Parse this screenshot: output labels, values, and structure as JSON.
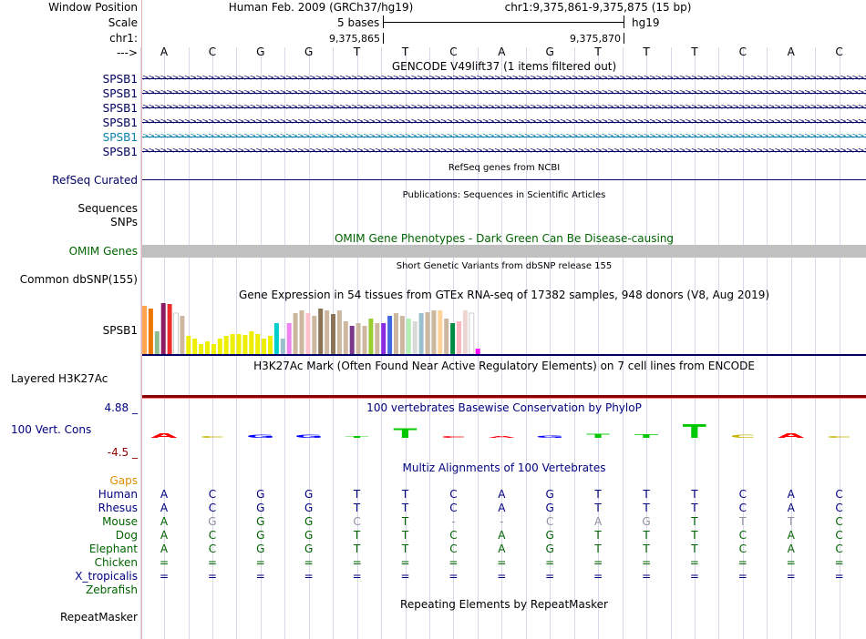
{
  "header": {
    "window_position_label": "Window Position",
    "scale_label": "Scale",
    "chr_label": "chr1:",
    "arrow_label": "--->",
    "assembly": "Human Feb. 2009 (GRCh37/hg19)",
    "position": "chr1:9,375,861-9,375,875 (15 bp)",
    "scale_text": "5 bases",
    "db": "hg19",
    "coord_left": "9,375,865",
    "coord_right": "9,375,870"
  },
  "bases": [
    "A",
    "C",
    "G",
    "G",
    "T",
    "T",
    "C",
    "A",
    "G",
    "T",
    "T",
    "T",
    "C",
    "A",
    "C"
  ],
  "gencode": {
    "title": "GENCODE V49lift37 (1 items filtered out)",
    "genes": [
      {
        "name": "SPSB1",
        "color": "#000064"
      },
      {
        "name": "SPSB1",
        "color": "#000064"
      },
      {
        "name": "SPSB1",
        "color": "#000064"
      },
      {
        "name": "SPSB1",
        "color": "#000064"
      },
      {
        "name": "SPSB1",
        "color": "#0a7faa"
      },
      {
        "name": "SPSB1",
        "color": "#000064"
      }
    ]
  },
  "refseq": {
    "title": "RefSeq genes from NCBI",
    "label": "RefSeq Curated"
  },
  "publications": {
    "title": "Publications: Sequences in Scientific Articles",
    "label1": "Sequences",
    "label2": "SNPs"
  },
  "omim": {
    "title": "OMIM Gene Phenotypes - Dark Green Can Be Disease-causing",
    "label": "OMIM Genes"
  },
  "dbsnp": {
    "title": "Short Genetic Variants from dbSNP release 155",
    "label": "Common dbSNP(155)"
  },
  "gtex": {
    "title": "Gene Expression in 54 tissues from GTEx RNA-seq of 17382 samples, 948 donors (V8, Aug 2019)",
    "label": "SPSB1",
    "tissue_levels": [
      0.95,
      0.9,
      0.45,
      1.0,
      0.98,
      0.8,
      0.75,
      0.35,
      0.3,
      0.2,
      0.25,
      0.2,
      0.3,
      0.35,
      0.4,
      0.4,
      0.38,
      0.45,
      0.4,
      0.3,
      0.35,
      0.6,
      0.3,
      0.6,
      0.8,
      0.85,
      0.8,
      0.75,
      0.9,
      0.85,
      0.78,
      0.85,
      0.65,
      0.55,
      0.6,
      0.55,
      0.7,
      0.6,
      0.6,
      0.75,
      0.8,
      0.75,
      0.7,
      0.65,
      0.8,
      0.82,
      0.85,
      0.85,
      0.7,
      0.6,
      0.65,
      0.85,
      0.8,
      0.1
    ],
    "tissue_colors": [
      "#ffa54f",
      "#ee7600",
      "#8fbc8f",
      "#8b1c62",
      "#ee2c2c",
      "#ffffff",
      "#cdb79e",
      "#eeee00",
      "#eeee00",
      "#eeee00",
      "#eeee00",
      "#eeee00",
      "#eeee00",
      "#eeee00",
      "#eeee00",
      "#eeee00",
      "#eeee00",
      "#eeee00",
      "#eeee00",
      "#eeee00",
      "#eeee00",
      "#00cdcd",
      "#9ac0cd",
      "#ee82ee",
      "#cdb79e",
      "#cdb79e",
      "#ffc0cb",
      "#cdb79e",
      "#8b7355",
      "#cdb79e",
      "#8b7355",
      "#cdb79e",
      "#cdb79e",
      "#7a378b",
      "#cdb79e",
      "#cdb79e",
      "#9acd32",
      "#cdb79e",
      "#8a2be2",
      "#4169e1",
      "#cdb79e",
      "#cdb79e",
      "#b4eeb4",
      "#d9d9d9",
      "#9ac0cd",
      "#cdb79e",
      "#cdb79e",
      "#ffd39b",
      "#cdb79e",
      "#008b45",
      "#ffb6c1",
      "#eed5d2",
      "#ffffff",
      "#ff00ff"
    ]
  },
  "h3k27ac": {
    "title": "H3K27Ac Mark (Often Found Near Active Regulatory Elements) on 7 cell lines from ENCODE",
    "label": "Layered H3K27Ac"
  },
  "cons": {
    "title": "100 vertebrates Basewise Conservation by PhyloP",
    "label": "100 Vert. Cons",
    "max_label": "4.88 _",
    "min_label": "-4.5 _",
    "scores": [
      1.2,
      0.3,
      0.7,
      0.8,
      0.2,
      2.5,
      0.1,
      0.5,
      0.6,
      1.1,
      0.9,
      3.5,
      0.8,
      1.3,
      0.2
    ],
    "colors": [
      "#ff0000",
      "#c8b400",
      "#0000ff",
      "#0000ff",
      "#00c800",
      "#00c800",
      "#ff0000",
      "#ff0000",
      "#0000ff",
      "#00c800",
      "#00c800",
      "#00c800",
      "#c8b400",
      "#ff0000",
      "#c8b400"
    ]
  },
  "multiz": {
    "title": "Multiz Alignments of 100 Vertebrates",
    "gaps_label": "Gaps",
    "species": [
      {
        "name": "Human",
        "color": "#000080",
        "bases": [
          "A",
          "C",
          "G",
          "G",
          "T",
          "T",
          "C",
          "A",
          "G",
          "T",
          "T",
          "T",
          "C",
          "A",
          "C"
        ],
        "dim": []
      },
      {
        "name": "Rhesus",
        "color": "#000080",
        "bases": [
          "A",
          "C",
          "G",
          "G",
          "T",
          "T",
          "C",
          "A",
          "G",
          "T",
          "T",
          "T",
          "C",
          "A",
          "C"
        ],
        "dim": []
      },
      {
        "name": "Mouse",
        "color": "#006400",
        "bases": [
          "A",
          "G",
          "G",
          "G",
          "C",
          "T",
          "-",
          "-",
          "C",
          "A",
          "G",
          "T",
          "T",
          "T",
          "C"
        ],
        "dim": [
          1,
          4,
          6,
          7,
          8,
          9,
          10,
          12,
          13
        ]
      },
      {
        "name": "Dog",
        "color": "#006400",
        "bases": [
          "A",
          "C",
          "G",
          "G",
          "T",
          "T",
          "C",
          "A",
          "G",
          "T",
          "T",
          "T",
          "C",
          "A",
          "C"
        ],
        "dim": []
      },
      {
        "name": "Elephant",
        "color": "#006400",
        "bases": [
          "A",
          "C",
          "G",
          "G",
          "T",
          "T",
          "C",
          "A",
          "G",
          "T",
          "T",
          "T",
          "C",
          "A",
          "C"
        ],
        "dim": []
      },
      {
        "name": "Chicken",
        "color": "#006400",
        "bases": [
          "=",
          "=",
          "=",
          "=",
          "=",
          "=",
          "=",
          "=",
          "=",
          "=",
          "=",
          "=",
          "=",
          "=",
          "="
        ],
        "dim": []
      },
      {
        "name": "X_tropicalis",
        "color": "#000080",
        "bases": [
          "=",
          "=",
          "=",
          "=",
          "=",
          "=",
          "=",
          "=",
          "=",
          "=",
          "=",
          "=",
          "=",
          "=",
          "="
        ],
        "dim": []
      },
      {
        "name": "Zebrafish",
        "color": "#006400",
        "bases": [
          "",
          "",
          "",
          "",
          "",
          "",
          "",
          "",
          "",
          "",
          "",
          "",
          "",
          "",
          ""
        ],
        "dim": []
      }
    ]
  },
  "repeatmasker": {
    "title": "Repeating Elements by RepeatMasker",
    "label": "RepeatMasker"
  },
  "colors": {
    "gene": "#000064",
    "omim_label": "#006400",
    "cons_label": "#000080",
    "gaps": "#e09000",
    "h3k_line": "#8b0000"
  }
}
